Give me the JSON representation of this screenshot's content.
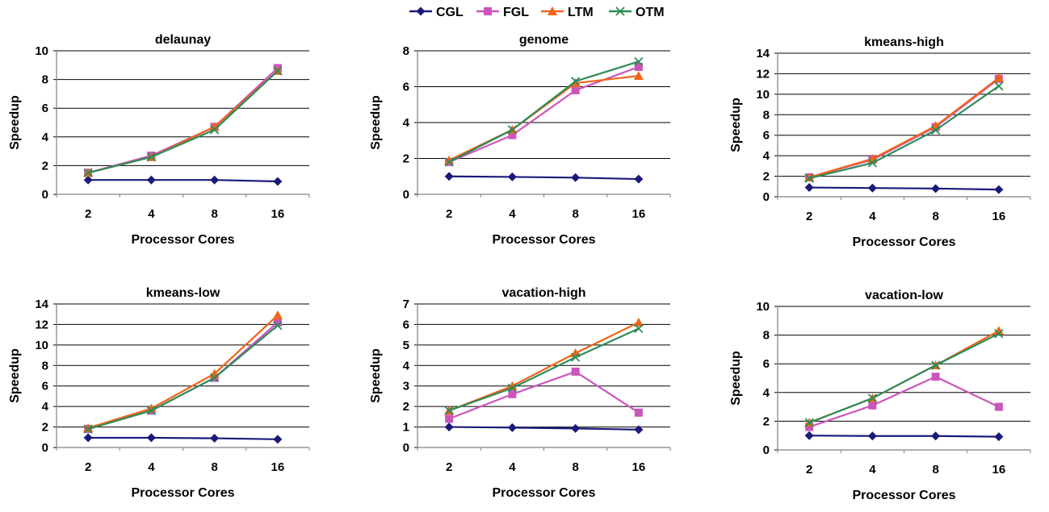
{
  "legend": [
    "CGL",
    "FGL",
    "LTM",
    "OTM"
  ],
  "colors": {
    "CGL": "#1a1a7a",
    "FGL": "#cc55bb",
    "LTM": "#f06418",
    "OTM": "#2e8b57"
  },
  "markers": {
    "CGL": "diamond",
    "FGL": "square",
    "LTM": "triangle",
    "OTM": "x-mark"
  },
  "chart_data": [
    {
      "type": "line",
      "title": "delaunay",
      "xlabel": "Processor Cores",
      "ylabel": "Speedup",
      "categories": [
        "2",
        "4",
        "8",
        "16"
      ],
      "ylim": [
        0,
        10
      ],
      "yticks": [
        0,
        2,
        4,
        6,
        8,
        10
      ],
      "series": [
        {
          "name": "CGL",
          "values": [
            1.0,
            1.0,
            1.0,
            0.9
          ]
        },
        {
          "name": "FGL",
          "values": [
            1.5,
            2.7,
            4.7,
            8.8
          ]
        },
        {
          "name": "LTM",
          "values": [
            1.5,
            2.6,
            4.7,
            8.6
          ]
        },
        {
          "name": "OTM",
          "values": [
            1.5,
            2.6,
            4.5,
            8.6
          ]
        }
      ]
    },
    {
      "type": "line",
      "title": "genome",
      "xlabel": "Processor Cores",
      "ylabel": "Speedup",
      "categories": [
        "2",
        "4",
        "8",
        "16"
      ],
      "ylim": [
        0,
        8
      ],
      "yticks": [
        0,
        2,
        4,
        6,
        8
      ],
      "series": [
        {
          "name": "CGL",
          "values": [
            1.0,
            0.97,
            0.93,
            0.85
          ]
        },
        {
          "name": "FGL",
          "values": [
            1.8,
            3.3,
            5.8,
            7.1
          ]
        },
        {
          "name": "LTM",
          "values": [
            1.9,
            3.6,
            6.2,
            6.6
          ]
        },
        {
          "name": "OTM",
          "values": [
            1.8,
            3.6,
            6.3,
            7.4
          ]
        }
      ]
    },
    {
      "type": "line",
      "title": "kmeans-high",
      "xlabel": "Processor Cores",
      "ylabel": "Speedup",
      "categories": [
        "2",
        "4",
        "8",
        "16"
      ],
      "ylim": [
        0,
        14
      ],
      "yticks": [
        0,
        2,
        4,
        6,
        8,
        10,
        12,
        14
      ],
      "series": [
        {
          "name": "CGL",
          "values": [
            0.9,
            0.85,
            0.8,
            0.7
          ]
        },
        {
          "name": "FGL",
          "values": [
            1.9,
            3.6,
            6.8,
            11.5
          ]
        },
        {
          "name": "LTM",
          "values": [
            1.9,
            3.7,
            6.9,
            11.6
          ]
        },
        {
          "name": "OTM",
          "values": [
            1.8,
            3.3,
            6.5,
            10.8
          ]
        }
      ]
    },
    {
      "type": "line",
      "title": "kmeans-low",
      "xlabel": "Processor Cores",
      "ylabel": "Speedup",
      "categories": [
        "2",
        "4",
        "8",
        "16"
      ],
      "ylim": [
        0,
        14
      ],
      "yticks": [
        0,
        2,
        4,
        6,
        8,
        10,
        12,
        14
      ],
      "series": [
        {
          "name": "CGL",
          "values": [
            0.95,
            0.95,
            0.9,
            0.8
          ]
        },
        {
          "name": "FGL",
          "values": [
            1.8,
            3.6,
            6.8,
            12.2
          ]
        },
        {
          "name": "LTM",
          "values": [
            1.9,
            3.8,
            7.2,
            12.9
          ]
        },
        {
          "name": "OTM",
          "values": [
            1.8,
            3.6,
            6.8,
            11.9
          ]
        }
      ]
    },
    {
      "type": "line",
      "title": "vacation-high",
      "xlabel": "Processor Cores",
      "ylabel": "Speedup",
      "categories": [
        "2",
        "4",
        "8",
        "16"
      ],
      "ylim": [
        0,
        7
      ],
      "yticks": [
        0,
        1,
        2,
        3,
        4,
        5,
        6,
        7
      ],
      "series": [
        {
          "name": "CGL",
          "values": [
            1.0,
            0.97,
            0.93,
            0.87
          ]
        },
        {
          "name": "FGL",
          "values": [
            1.4,
            2.6,
            3.7,
            1.7
          ]
        },
        {
          "name": "LTM",
          "values": [
            1.8,
            3.0,
            4.6,
            6.1
          ]
        },
        {
          "name": "OTM",
          "values": [
            1.8,
            2.9,
            4.4,
            5.8
          ]
        }
      ]
    },
    {
      "type": "line",
      "title": "vacation-low",
      "xlabel": "Processor Cores",
      "ylabel": "Speedup",
      "categories": [
        "2",
        "4",
        "8",
        "16"
      ],
      "ylim": [
        0,
        10
      ],
      "yticks": [
        0,
        2,
        4,
        6,
        8,
        10
      ],
      "series": [
        {
          "name": "CGL",
          "values": [
            1.0,
            0.97,
            0.97,
            0.92
          ]
        },
        {
          "name": "FGL",
          "values": [
            1.6,
            3.1,
            5.1,
            3.0
          ]
        },
        {
          "name": "LTM",
          "values": [
            1.9,
            3.6,
            5.9,
            8.3
          ]
        },
        {
          "name": "OTM",
          "values": [
            1.9,
            3.6,
            5.9,
            8.1
          ]
        }
      ]
    }
  ]
}
